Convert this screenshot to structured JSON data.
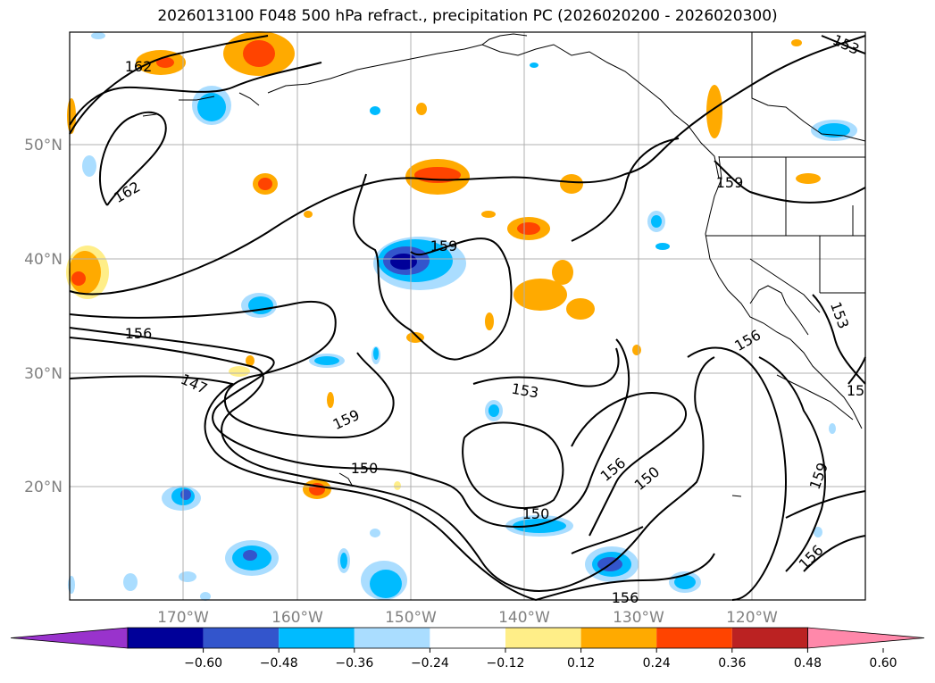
{
  "title": "2026013100 F048 500 hPa refract., precipitation PC (2026020200 - 2026020300)",
  "map": {
    "lat_labels": [
      "50°N",
      "40°N",
      "30°N",
      "20°N"
    ],
    "lon_labels": [
      "170°W",
      "160°W",
      "150°W",
      "140°W",
      "130°W",
      "120°W"
    ],
    "contour_labels": [
      "162",
      "162",
      "159",
      "159",
      "159",
      "156",
      "156",
      "156",
      "156",
      "156",
      "153",
      "153",
      "153",
      "150",
      "150",
      "150",
      "147",
      "159",
      "15"
    ]
  },
  "colorbar": {
    "tick_labels": [
      "−0.60",
      "−0.48",
      "−0.36",
      "−0.24",
      "−0.12",
      "0.12",
      "0.24",
      "0.36",
      "0.48",
      "0.60"
    ],
    "colors": [
      "#9933cc",
      "#000099",
      "#3355cc",
      "#00bbff",
      "#aaddff",
      "#ffffff",
      "#ffee88",
      "#ffaa00",
      "#ff4400",
      "#bb2222",
      "#ff88aa"
    ]
  }
}
